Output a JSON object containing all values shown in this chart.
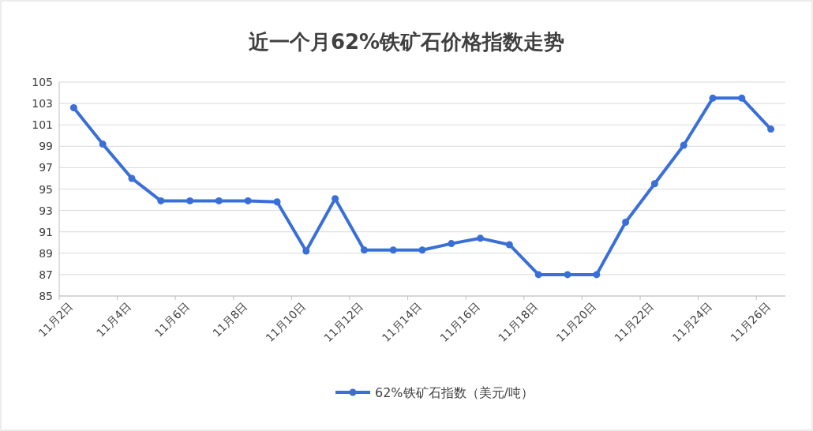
{
  "chart_data": {
    "type": "line",
    "title": "近一个月62%铁矿石价格指数走势",
    "categories": [
      "11月2日",
      null,
      "11月4日",
      null,
      "11月6日",
      null,
      "11月8日",
      null,
      "11月10日",
      null,
      "11月12日",
      null,
      "11月14日",
      null,
      "11月16日",
      null,
      "11月18日",
      null,
      "11月20日",
      null,
      "11月22日",
      null,
      "11月24日",
      null,
      "11月26日"
    ],
    "series": [
      {
        "name": "62%铁矿石指数（美元/吨）",
        "color": "#3a6fd8",
        "values": [
          102.6,
          99.2,
          96.0,
          93.9,
          93.9,
          93.9,
          93.9,
          93.8,
          89.2,
          94.1,
          89.3,
          89.3,
          89.3,
          89.9,
          90.4,
          89.8,
          87.0,
          87.0,
          87.0,
          91.9,
          95.5,
          99.1,
          103.5,
          103.5,
          100.6
        ]
      }
    ],
    "ylim": [
      85,
      105
    ],
    "yticks": [
      85,
      87,
      89,
      91,
      93,
      95,
      97,
      99,
      101,
      103,
      105
    ],
    "grid": "y",
    "legend": "bottom",
    "marker": "circle",
    "line_style": "solid"
  }
}
